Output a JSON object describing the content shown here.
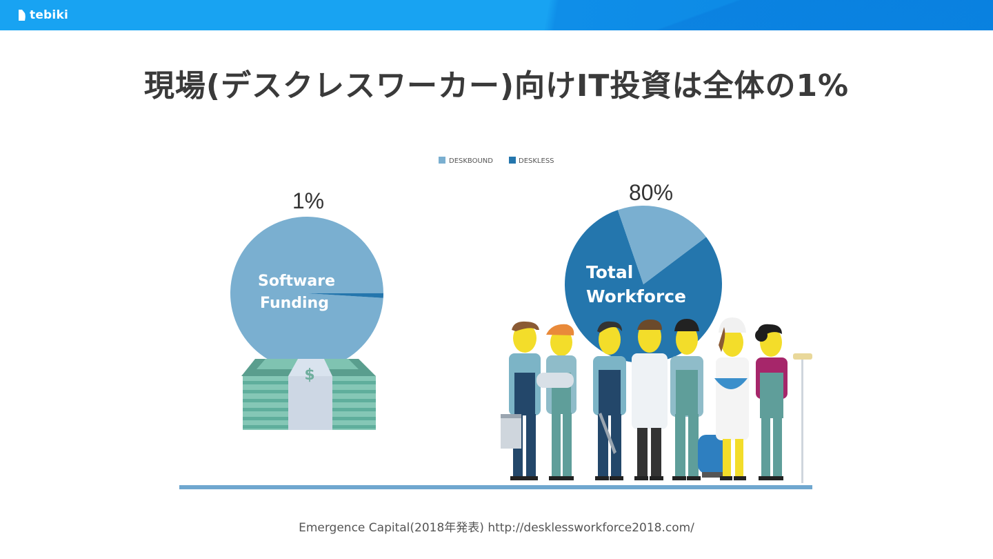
{
  "header": {
    "brand": "tebiki"
  },
  "slide": {
    "title": "現場(デスクレスワーカー)向けIT投資は全体の1%",
    "caption": "Emergence Capital(2018年発表) http://desklessworkforce2018.com/"
  },
  "chart_data": [
    {
      "type": "pie",
      "center_label": [
        "Software",
        "Funding"
      ],
      "value_label": "1%",
      "legend_placement": "top",
      "slices": [
        {
          "name": "DESKBOUND",
          "value": 99,
          "color": "#7aafd0"
        },
        {
          "name": "DESKLESS",
          "value": 1,
          "color": "#2476ad"
        }
      ]
    },
    {
      "type": "pie",
      "center_label": [
        "Total",
        "Workforce"
      ],
      "value_label": "80%",
      "legend_placement": "top",
      "slices": [
        {
          "name": "DESKLESS",
          "value": 80,
          "color": "#2476ad"
        },
        {
          "name": "DESKBOUND",
          "value": 20,
          "color": "#7aafd0"
        }
      ]
    }
  ],
  "legend": [
    {
      "label": "DESKBOUND",
      "color": "#7aafd0"
    },
    {
      "label": "DESKLESS",
      "color": "#2476ad"
    }
  ],
  "illustrations": {
    "money": "dollar-bill-stack-icon",
    "workers": "workers-group-icon"
  }
}
